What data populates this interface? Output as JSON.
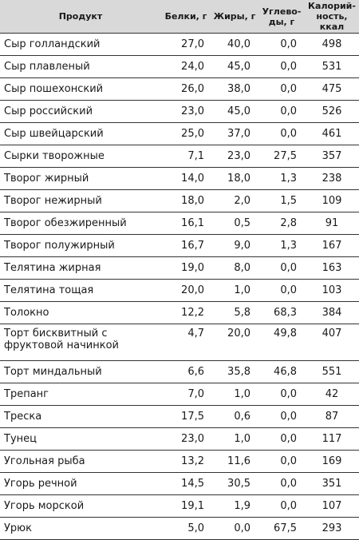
{
  "table": {
    "headers": {
      "product": "Продукт",
      "protein": "Белки, г",
      "fat": "Жиры, г",
      "carbs_line1": "Углево-",
      "carbs_line2": "ды, г",
      "kcal_line1": "Калорий-",
      "kcal_line2": "ность, ккал"
    },
    "rows": [
      {
        "name": "Сыр голландский",
        "protein": "27,0",
        "fat": "40,0",
        "carbs": "0,0",
        "kcal": "498"
      },
      {
        "name": "Сыр плавленый",
        "protein": "24,0",
        "fat": "45,0",
        "carbs": "0,0",
        "kcal": "531"
      },
      {
        "name": "Сыр пошехонский",
        "protein": "26,0",
        "fat": "38,0",
        "carbs": "0,0",
        "kcal": "475"
      },
      {
        "name": "Сыр российский",
        "protein": "23,0",
        "fat": "45,0",
        "carbs": "0,0",
        "kcal": "526"
      },
      {
        "name": "Сыр швейцарский",
        "protein": "25,0",
        "fat": "37,0",
        "carbs": "0,0",
        "kcal": "461"
      },
      {
        "name": "Сырки творожные",
        "protein": "7,1",
        "fat": "23,0",
        "carbs": "27,5",
        "kcal": "357"
      },
      {
        "name": "Творог жирный",
        "protein": "14,0",
        "fat": "18,0",
        "carbs": "1,3",
        "kcal": "238"
      },
      {
        "name": "Творог нежирный",
        "protein": "18,0",
        "fat": "2,0",
        "carbs": "1,5",
        "kcal": "109"
      },
      {
        "name": "Творог обезжиренный",
        "protein": "16,1",
        "fat": "0,5",
        "carbs": "2,8",
        "kcal": "91"
      },
      {
        "name": "Творог полужирный",
        "protein": "16,7",
        "fat": "9,0",
        "carbs": "1,3",
        "kcal": "167"
      },
      {
        "name": "Телятина жирная",
        "protein": "19,0",
        "fat": "8,0",
        "carbs": "0,0",
        "kcal": "163"
      },
      {
        "name": "Телятина тощая",
        "protein": "20,0",
        "fat": "1,0",
        "carbs": "0,0",
        "kcal": "103"
      },
      {
        "name": "Толокно",
        "protein": "12,2",
        "fat": "5,8",
        "carbs": "68,3",
        "kcal": "384"
      },
      {
        "name": "Торт бисквитный с фруктовой начинкой",
        "protein": "4,7",
        "fat": "20,0",
        "carbs": "49,8",
        "kcal": "407"
      },
      {
        "name": "Торт миндальный",
        "protein": "6,6",
        "fat": "35,8",
        "carbs": "46,8",
        "kcal": "551"
      },
      {
        "name": "Трепанг",
        "protein": "7,0",
        "fat": "1,0",
        "carbs": "0,0",
        "kcal": "42"
      },
      {
        "name": "Треска",
        "protein": "17,5",
        "fat": "0,6",
        "carbs": "0,0",
        "kcal": "87"
      },
      {
        "name": "Тунец",
        "protein": "23,0",
        "fat": "1,0",
        "carbs": "0,0",
        "kcal": "117"
      },
      {
        "name": "Угольная рыба",
        "protein": "13,2",
        "fat": "11,6",
        "carbs": "0,0",
        "kcal": "169"
      },
      {
        "name": "Угорь речной",
        "protein": "14,5",
        "fat": "30,5",
        "carbs": "0,0",
        "kcal": "351"
      },
      {
        "name": "Угорь морской",
        "protein": "19,1",
        "fat": "1,9",
        "carbs": "0,0",
        "kcal": "107"
      },
      {
        "name": "Урюк",
        "protein": "5,0",
        "fat": "0,0",
        "carbs": "67,5",
        "kcal": "293"
      }
    ]
  }
}
